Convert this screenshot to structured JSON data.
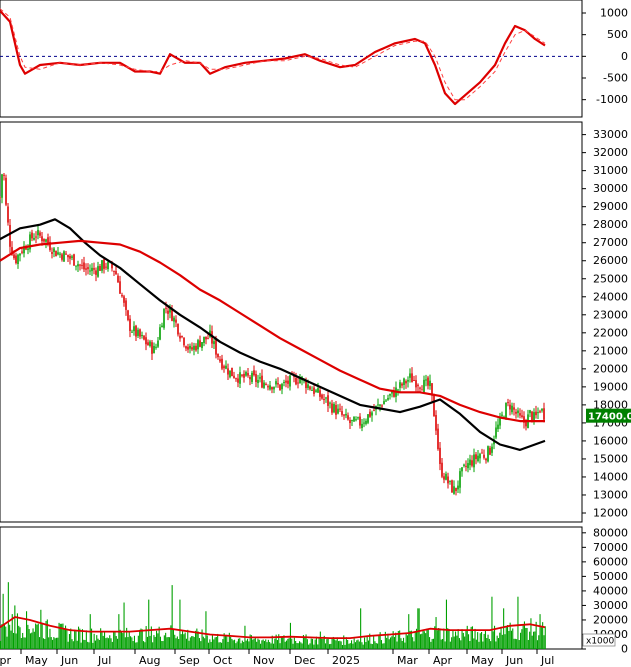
{
  "chart_data": [
    {
      "type": "line",
      "panel": "oscillator",
      "title": "",
      "ylim": [
        -1400,
        1300
      ],
      "yticks": [
        "1000",
        "500",
        "0",
        "-500",
        "-1000"
      ],
      "yticks_values": [
        1000,
        500,
        0,
        -500,
        -1000
      ],
      "reference_line": {
        "value": 0,
        "style": "dashed",
        "color": "#00008b"
      },
      "x": [
        0,
        10,
        20,
        25,
        40,
        60,
        80,
        100,
        120,
        135,
        150,
        160,
        170,
        185,
        200,
        210,
        225,
        245,
        265,
        285,
        305,
        320,
        340,
        355,
        375,
        395,
        415,
        425,
        435,
        445,
        455,
        465,
        480,
        495,
        505,
        515,
        525,
        535,
        545
      ],
      "series": [
        {
          "name": "",
          "color": "#dd0000",
          "values": [
            1050,
            800,
            -200,
            -400,
            -200,
            -150,
            -200,
            -150,
            -150,
            -350,
            -350,
            -400,
            50,
            -150,
            -150,
            -400,
            -250,
            -150,
            -100,
            -50,
            50,
            -100,
            -250,
            -200,
            100,
            300,
            400,
            300,
            -200,
            -850,
            -1100,
            -900,
            -600,
            -200,
            300,
            700,
            600,
            400,
            250
          ]
        },
        {
          "name": "",
          "color": "#ff4040",
          "dashed": true,
          "values": [
            1100,
            900,
            0,
            -250,
            -300,
            -150,
            -200,
            -150,
            -200,
            -300,
            -350,
            -350,
            -200,
            -100,
            -150,
            -300,
            -300,
            -200,
            -100,
            -100,
            0,
            -50,
            -200,
            -250,
            0,
            250,
            350,
            350,
            0,
            -600,
            -1000,
            -1000,
            -700,
            -350,
            100,
            500,
            600,
            450,
            300
          ]
        }
      ]
    },
    {
      "type": "candlestick",
      "panel": "price",
      "title": "",
      "ylim": [
        11500,
        33700
      ],
      "yticks": [
        "33000",
        "32000",
        "31000",
        "30000",
        "29000",
        "28000",
        "27000",
        "26000",
        "25000",
        "24000",
        "23000",
        "22000",
        "21000",
        "20000",
        "19000",
        "18000",
        "17000",
        "16000",
        "15000",
        "14000",
        "13000",
        "12000"
      ],
      "yticks_values": [
        33000,
        32000,
        31000,
        30000,
        29000,
        28000,
        27000,
        26000,
        25000,
        24000,
        23000,
        22000,
        21000,
        20000,
        19000,
        18000,
        17000,
        16000,
        15000,
        14000,
        13000,
        12000
      ],
      "last_price_label": "17400.00",
      "last_price": 17400,
      "price_path": {
        "x": [
          0,
          3,
          6,
          10,
          15,
          20,
          28,
          35,
          45,
          55,
          65,
          75,
          85,
          95,
          105,
          115,
          122,
          128,
          135,
          145,
          155,
          165,
          172,
          180,
          190,
          200,
          210,
          220,
          230,
          240,
          250,
          260,
          270,
          280,
          290,
          300,
          310,
          320,
          330,
          340,
          350,
          360,
          370,
          380,
          390,
          400,
          410,
          420,
          430,
          436,
          440,
          445,
          450,
          455,
          460,
          465,
          470,
          475,
          480,
          485,
          490,
          495,
          500,
          505,
          510,
          515,
          520,
          525,
          530,
          535,
          540,
          545
        ],
        "values": [
          29500,
          31500,
          29000,
          27000,
          26000,
          26500,
          27000,
          27500,
          27200,
          26500,
          26300,
          26000,
          25500,
          25500,
          25800,
          25500,
          24000,
          22500,
          22000,
          21500,
          21000,
          23500,
          23000,
          22000,
          21000,
          21500,
          21800,
          20500,
          19800,
          19500,
          19500,
          19300,
          19200,
          19000,
          19300,
          19500,
          19000,
          18500,
          18000,
          17500,
          17000,
          17000,
          17500,
          18000,
          18500,
          19000,
          19500,
          19200,
          19000,
          16800,
          14500,
          14000,
          13500,
          13200,
          14000,
          14500,
          14800,
          15000,
          15300,
          15200,
          15500,
          16500,
          17000,
          17800,
          18000,
          17600,
          17200,
          17000,
          17500,
          17200,
          17800,
          17400
        ]
      },
      "series": [
        {
          "name": "",
          "color": "#000000",
          "x": [
            0,
            20,
            40,
            55,
            70,
            85,
            100,
            120,
            140,
            160,
            180,
            200,
            220,
            240,
            260,
            280,
            300,
            320,
            340,
            360,
            380,
            400,
            420,
            440,
            460,
            480,
            500,
            520,
            545
          ],
          "values": [
            27200,
            27800,
            28000,
            28300,
            27800,
            27000,
            26300,
            25600,
            24700,
            23800,
            23000,
            22300,
            21500,
            20900,
            20400,
            20000,
            19500,
            19000,
            18500,
            18000,
            17800,
            17600,
            17900,
            18300,
            17500,
            16500,
            15800,
            15500,
            16000
          ]
        },
        {
          "name": "",
          "color": "#dd0000",
          "x": [
            0,
            20,
            40,
            60,
            80,
            100,
            120,
            140,
            160,
            180,
            200,
            220,
            240,
            260,
            280,
            300,
            320,
            340,
            360,
            380,
            400,
            420,
            440,
            460,
            480,
            500,
            520,
            545
          ],
          "values": [
            26000,
            26700,
            26900,
            27000,
            27100,
            27000,
            26900,
            26500,
            25900,
            25200,
            24400,
            23800,
            23100,
            22400,
            21700,
            21100,
            20500,
            19900,
            19400,
            18900,
            18700,
            18700,
            18500,
            18000,
            17600,
            17300,
            17100,
            17100
          ]
        }
      ]
    },
    {
      "type": "bar",
      "panel": "volume",
      "title": "",
      "unit_label": "x1000",
      "ylim": [
        0,
        84000
      ],
      "yticks": [
        "80000",
        "70000",
        "60000",
        "50000",
        "40000",
        "30000",
        "20000",
        "10000",
        "0"
      ],
      "yticks_values": [
        80000,
        70000,
        60000,
        50000,
        40000,
        30000,
        20000,
        10000,
        0
      ],
      "bar_color": "#00a000",
      "average_line": {
        "color": "#dd0000",
        "x": [
          0,
          15,
          30,
          50,
          70,
          90,
          110,
          130,
          150,
          170,
          190,
          210,
          230,
          250,
          270,
          290,
          310,
          330,
          350,
          370,
          390,
          410,
          430,
          450,
          470,
          490,
          510,
          530,
          545
        ],
        "values": [
          15000,
          22000,
          20000,
          16000,
          13000,
          12000,
          12000,
          12000,
          13000,
          14000,
          12000,
          10000,
          9000,
          8000,
          8000,
          8500,
          8000,
          7500,
          7500,
          9000,
          10000,
          11000,
          14000,
          13000,
          13000,
          13000,
          16000,
          17000,
          15000
        ]
      },
      "peaks": {
        "x": [
          2,
          8,
          14,
          26,
          40,
          58,
          90,
          118,
          124,
          148,
          172,
          180,
          206,
          245,
          290,
          320,
          360,
          408,
          418,
          436,
          446,
          492,
          503,
          518,
          540
        ],
        "values": [
          38000,
          46000,
          30000,
          26000,
          27000,
          18000,
          24000,
          24000,
          32000,
          34000,
          44000,
          34000,
          26000,
          16000,
          18000,
          12000,
          28000,
          24000,
          28000,
          22000,
          34000,
          36000,
          28000,
          36000,
          24000
        ]
      }
    }
  ],
  "x_axis": {
    "labels": [
      "Apr",
      "May",
      "Jun",
      "Jul",
      "Aug",
      "Sep",
      "Oct",
      "Nov",
      "Dec",
      "2025",
      "Mar",
      "Apr",
      "May",
      "Jun",
      "Jul"
    ],
    "label_x": [
      -8,
      25,
      61,
      98,
      139,
      179,
      213,
      253,
      294,
      332,
      397,
      433,
      471,
      506,
      541
    ]
  }
}
